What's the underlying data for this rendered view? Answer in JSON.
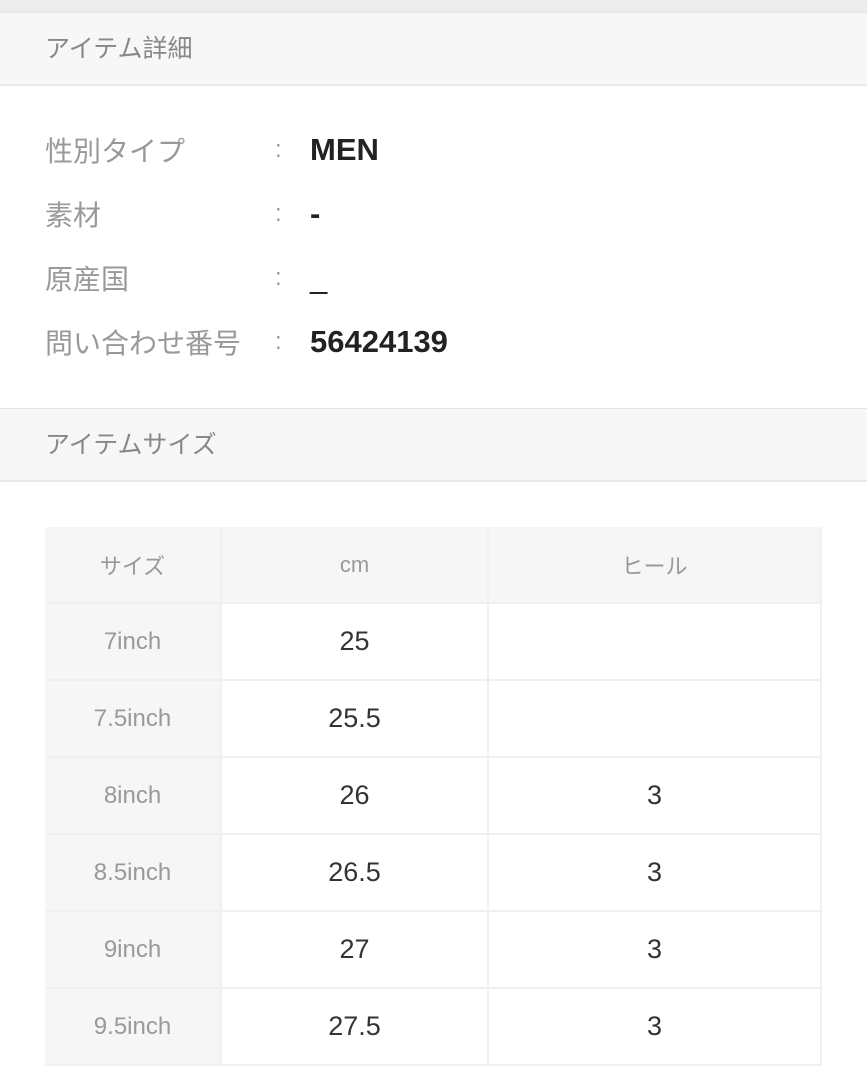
{
  "details": {
    "header": "アイテム詳細",
    "separator": ":",
    "rows": [
      {
        "label": "性別タイプ",
        "value": "MEN"
      },
      {
        "label": "素材",
        "value": "-"
      },
      {
        "label": "原産国",
        "value": "_"
      },
      {
        "label": "問い合わせ番号",
        "value": "56424139"
      }
    ]
  },
  "sizes": {
    "header": "アイテムサイズ",
    "columns": [
      "サイズ",
      "cm",
      "ヒール"
    ],
    "rows": [
      [
        "7inch",
        "25",
        ""
      ],
      [
        "7.5inch",
        "25.5",
        ""
      ],
      [
        "8inch",
        "26",
        "3"
      ],
      [
        "8.5inch",
        "26.5",
        "3"
      ],
      [
        "9inch",
        "27",
        "3"
      ],
      [
        "9.5inch",
        "27.5",
        "3"
      ]
    ]
  }
}
